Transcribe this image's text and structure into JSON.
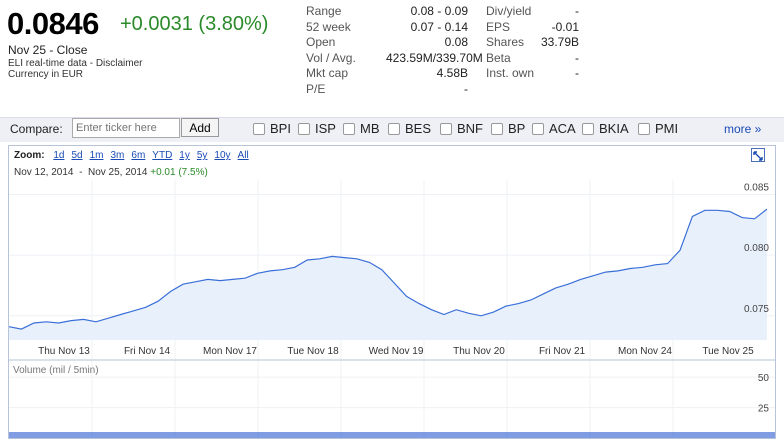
{
  "quote": {
    "price": "0.0846",
    "change": "+0.0031 (3.80%)",
    "date_line": "Nov 25 - Close",
    "disclaimer": "ELI real-time data - Disclaimer",
    "currency": "Currency in EUR"
  },
  "stats_left": [
    {
      "label": "Range",
      "value": "0.08 - 0.09"
    },
    {
      "label": "52 week",
      "value": "0.07 - 0.14"
    },
    {
      "label": "Open",
      "value": "0.08"
    },
    {
      "label": "Vol / Avg.",
      "value": "423.59M/339.70M"
    },
    {
      "label": "Mkt cap",
      "value": "4.58B"
    },
    {
      "label": "P/E",
      "value": "-"
    }
  ],
  "stats_right": [
    {
      "label": "Div/yield",
      "value": "-"
    },
    {
      "label": "EPS",
      "value": "-0.01"
    },
    {
      "label": "Shares",
      "value": "33.79B"
    },
    {
      "label": "Beta",
      "value": "-"
    },
    {
      "label": "Inst. own",
      "value": "-"
    }
  ],
  "compare": {
    "label": "Compare:",
    "placeholder": "Enter ticker here",
    "add_label": "Add",
    "tickers": [
      "BPI",
      "ISP",
      "MB",
      "BES",
      "BNF",
      "BP",
      "ACA",
      "BKIA",
      "PMI"
    ],
    "more_label": "more »"
  },
  "zoom": {
    "label": "Zoom:",
    "options": [
      "1d",
      "5d",
      "1m",
      "3m",
      "6m",
      "YTD",
      "1y",
      "5y",
      "10y",
      "All"
    ]
  },
  "range_bar": {
    "start": "Nov 12, 2014",
    "sep": "-",
    "end": "Nov 25, 2014",
    "gain": "+0.01 (7.5%)"
  },
  "volume_label": "Volume (mil / 5min)",
  "colors": {
    "up": "#2a8a2a",
    "line": "#3a6fd8",
    "area": "#e8f1fb",
    "link": "#1a4bb5"
  },
  "chart_data": {
    "type": "area",
    "x": [
      "Thu Nov 13",
      "Fri Nov 14",
      "Mon Nov 17",
      "Tue Nov 18",
      "Wed Nov 19",
      "Thu Nov 20",
      "Fri Nov 21",
      "Mon Nov 24",
      "Tue Nov 25"
    ],
    "price_series": {
      "values": [
        0.0741,
        0.0739,
        0.0744,
        0.0745,
        0.0744,
        0.0746,
        0.0747,
        0.0745,
        0.0748,
        0.0751,
        0.0754,
        0.0757,
        0.0762,
        0.077,
        0.0776,
        0.0778,
        0.078,
        0.0779,
        0.078,
        0.0781,
        0.0785,
        0.0787,
        0.0788,
        0.079,
        0.0796,
        0.0797,
        0.0799,
        0.0798,
        0.0797,
        0.0794,
        0.0788,
        0.0777,
        0.0766,
        0.076,
        0.0755,
        0.0751,
        0.0755,
        0.0752,
        0.075,
        0.0753,
        0.0758,
        0.076,
        0.0763,
        0.0768,
        0.0773,
        0.0776,
        0.078,
        0.0783,
        0.0786,
        0.0787,
        0.0789,
        0.079,
        0.0792,
        0.0793,
        0.0804,
        0.0832,
        0.0837,
        0.0837,
        0.0836,
        0.0831,
        0.083,
        0.0838
      ]
    },
    "volume": {
      "ticks": [
        50,
        25
      ]
    },
    "ylim": [
      0.073,
      0.0862
    ],
    "y_ticks": [
      0.075,
      0.08,
      0.085
    ],
    "y_tick_labels": [
      "0.075",
      "0.080",
      "0.085"
    ],
    "xlabel": "",
    "ylabel": ""
  }
}
